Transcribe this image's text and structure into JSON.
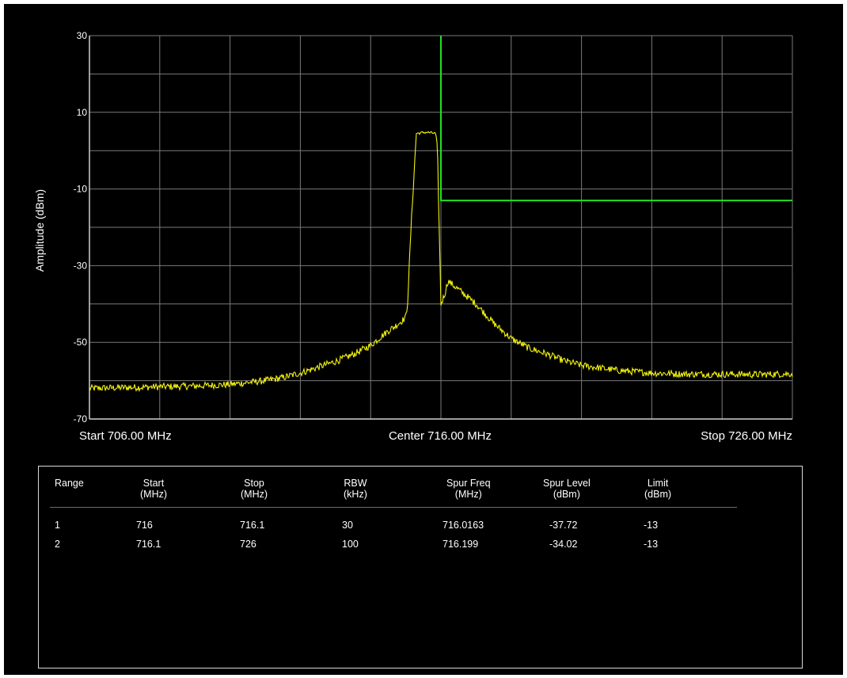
{
  "chart_data": {
    "type": "line",
    "ylabel": "Amplitude (dBm)",
    "ylim": [
      -70,
      30
    ],
    "y_ticks": [
      30,
      10,
      -10,
      -30,
      -50,
      -70
    ],
    "xlim": [
      706.0,
      726.0
    ],
    "x_labels": {
      "start": "Start 706.00 MHz",
      "center": "Center 716.00 MHz",
      "stop": "Stop 726.00 MHz"
    },
    "grid": true,
    "grid_divisions": {
      "x": 10,
      "y": 10
    },
    "colors": {
      "trace": "#f2f20f",
      "limit": "#22e022",
      "grid": "#7a7a7a",
      "axis_text": "#ffffff",
      "background": "#000000"
    },
    "series": [
      {
        "kind": "trace",
        "x": [
          706.0,
          707.0,
          708.0,
          709.0,
          710.0,
          711.0,
          711.5,
          712.0,
          712.5,
          713.0,
          713.5,
          714.0,
          714.3,
          714.5,
          714.7,
          714.9,
          715.0,
          715.05,
          715.15,
          715.3,
          715.6,
          715.85,
          715.9,
          715.95,
          716.0,
          716.1,
          716.2,
          716.5,
          717.0,
          717.5,
          718.0,
          718.5,
          719.0,
          719.5,
          720.0,
          721.0,
          722.0,
          723.0,
          724.0,
          725.0,
          726.0
        ],
        "y": [
          -62.0,
          -61.8,
          -61.6,
          -61.4,
          -61.0,
          -60.0,
          -59.2,
          -58.0,
          -56.5,
          -55.0,
          -53.2,
          -50.8,
          -48.5,
          -47.0,
          -45.8,
          -44.3,
          -43.5,
          -40.0,
          -20.0,
          4.5,
          4.8,
          4.5,
          1.0,
          -20.0,
          -40.0,
          -37.7,
          -34.0,
          -36.2,
          -40.0,
          -45.0,
          -49.0,
          -51.5,
          -53.0,
          -54.8,
          -56.0,
          -57.3,
          -58.0,
          -58.3,
          -58.3,
          -58.4,
          -58.2
        ]
      },
      {
        "kind": "limit",
        "x": [
          716.0,
          716.0,
          726.0
        ],
        "y": [
          30,
          -13,
          -13
        ]
      }
    ]
  },
  "results_table": {
    "headers": [
      {
        "l1": "Range",
        "l2": ""
      },
      {
        "l1": "Start",
        "l2": "(MHz)"
      },
      {
        "l1": "Stop",
        "l2": "(MHz)"
      },
      {
        "l1": "RBW",
        "l2": "(kHz)"
      },
      {
        "l1": "Spur Freq",
        "l2": "(MHz)"
      },
      {
        "l1": "Spur Level",
        "l2": "(dBm)"
      },
      {
        "l1": "Limit",
        "l2": "(dBm)"
      }
    ],
    "rows": [
      [
        "1",
        "716",
        "716.1",
        "30",
        "716.0163",
        "-37.72",
        "-13"
      ],
      [
        "2",
        "716.1",
        "726",
        "100",
        "716.199",
        "-34.02",
        "-13"
      ]
    ]
  }
}
